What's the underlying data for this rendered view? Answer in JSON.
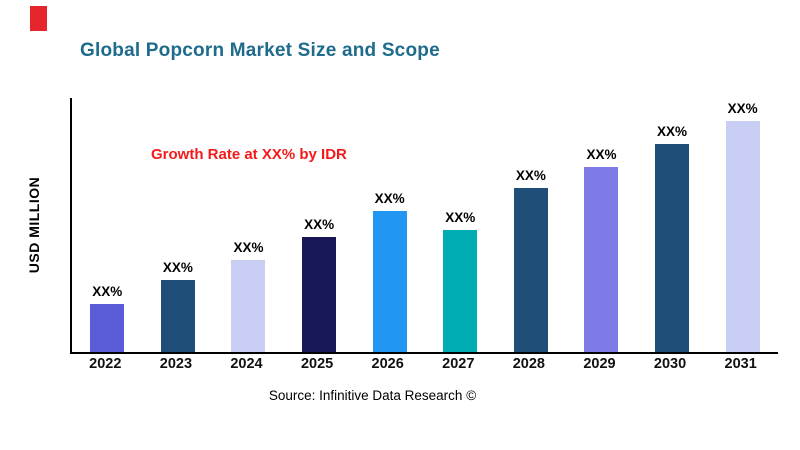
{
  "header": {
    "title": "Global Popcorn Market Size and Scope",
    "title_color": "#1e6b8c",
    "brand_mark_color": "#e4252b"
  },
  "chart_data": {
    "type": "bar",
    "title": "Global Popcorn Market Size and Scope",
    "ylabel": "USD MILLION",
    "xlabel": "",
    "categories": [
      "2022",
      "2023",
      "2024",
      "2025",
      "2026",
      "2027",
      "2028",
      "2029",
      "2030",
      "2031"
    ],
    "values": [
      21,
      31,
      40,
      50,
      61,
      53,
      71,
      80,
      90,
      100
    ],
    "bar_labels": [
      "XX%",
      "XX%",
      "XX%",
      "XX%",
      "XX%",
      "XX%",
      "XX%",
      "XX%",
      "XX%",
      "XX%"
    ],
    "bar_colors": [
      "#5a5bd6",
      "#1f4e79",
      "#c9cef4",
      "#181856",
      "#2196f3",
      "#00adb5",
      "#1f4e79",
      "#7e7ae6",
      "#1f4e79",
      "#c9cef4"
    ],
    "ylim": [
      0,
      110
    ],
    "grid": "off",
    "legend": "none",
    "annotation": "Growth Rate at XX% by IDR",
    "annotation_color": "#f51a1a",
    "source": "Source: Infinitive Data Research ©"
  }
}
